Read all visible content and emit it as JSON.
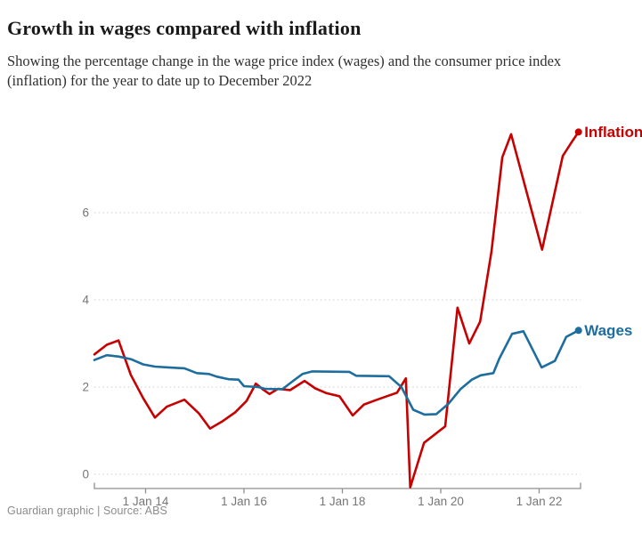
{
  "header": {
    "title": "Growth in wages compared with inflation",
    "subtitle": "Showing the percentage change in the wage price index (wages) and the consumer price index (inflation) for the year to date up to December 2022"
  },
  "footer": {
    "credit": "Guardian graphic | Source: ABS"
  },
  "chart_data": {
    "type": "line",
    "title": "Growth in wages compared with inflation",
    "xlabel": "",
    "ylabel": "",
    "legend_position": "line-end-labels",
    "grid": "dotted-horizontal",
    "colors": {
      "grid_color": "#d9d9d9",
      "axis_color": "#8f8f8f",
      "tick_label_color": "#767676",
      "title_color": "#1a1a1a",
      "subtitle_color": "#303030",
      "credit_color": "#8c8c8c"
    },
    "x_axis": {
      "unit": "decimal_year",
      "range": [
        2012.96,
        2022.8
      ],
      "ticks": [
        {
          "label": "1 Jan 14",
          "year": 2014
        },
        {
          "label": "1 Jan 16",
          "year": 2016
        },
        {
          "label": "1 Jan 18",
          "year": 2018
        },
        {
          "label": "1 Jan 20",
          "year": 2020
        },
        {
          "label": "1 Jan 22",
          "year": 2022
        }
      ]
    },
    "y_axis": {
      "unit": "percent",
      "ylim": [
        -0.5,
        8.3
      ],
      "ticks": [
        0,
        2,
        4,
        6
      ]
    },
    "series": [
      {
        "name": "Inflation",
        "color": "#c70000",
        "points": [
          [
            2012.96,
            2.75
          ],
          [
            2013.21,
            2.97
          ],
          [
            2013.45,
            3.07
          ],
          [
            2013.7,
            2.28
          ],
          [
            2013.95,
            1.75
          ],
          [
            2014.19,
            1.3
          ],
          [
            2014.43,
            1.55
          ],
          [
            2014.79,
            1.71
          ],
          [
            2015.08,
            1.4
          ],
          [
            2015.31,
            1.05
          ],
          [
            2015.57,
            1.22
          ],
          [
            2015.82,
            1.42
          ],
          [
            2016.05,
            1.68
          ],
          [
            2016.24,
            2.08
          ],
          [
            2016.38,
            1.95
          ],
          [
            2016.52,
            1.84
          ],
          [
            2016.69,
            1.96
          ],
          [
            2016.94,
            1.93
          ],
          [
            2017.23,
            2.14
          ],
          [
            2017.45,
            1.97
          ],
          [
            2017.68,
            1.86
          ],
          [
            2017.94,
            1.79
          ],
          [
            2018.21,
            1.35
          ],
          [
            2018.44,
            1.6
          ],
          [
            2018.68,
            1.7
          ],
          [
            2018.93,
            1.8
          ],
          [
            2019.11,
            1.87
          ],
          [
            2019.29,
            2.2
          ],
          [
            2019.38,
            -0.3
          ],
          [
            2019.66,
            0.72
          ],
          [
            2020.09,
            1.1
          ],
          [
            2020.34,
            3.82
          ],
          [
            2020.58,
            3.0
          ],
          [
            2020.8,
            3.5
          ],
          [
            2021.03,
            5.1
          ],
          [
            2021.25,
            7.27
          ],
          [
            2021.43,
            7.8
          ],
          [
            2022.06,
            5.15
          ],
          [
            2022.48,
            7.3
          ],
          [
            2022.68,
            7.65
          ],
          [
            2022.8,
            7.85
          ]
        ]
      },
      {
        "name": "Wages",
        "color": "#1d6e9f",
        "points": [
          [
            2012.96,
            2.62
          ],
          [
            2013.21,
            2.73
          ],
          [
            2013.45,
            2.7
          ],
          [
            2013.7,
            2.64
          ],
          [
            2013.95,
            2.52
          ],
          [
            2014.19,
            2.47
          ],
          [
            2014.46,
            2.45
          ],
          [
            2014.79,
            2.43
          ],
          [
            2015.04,
            2.32
          ],
          [
            2015.29,
            2.3
          ],
          [
            2015.44,
            2.24
          ],
          [
            2015.69,
            2.18
          ],
          [
            2015.89,
            2.17
          ],
          [
            2016.0,
            2.02
          ],
          [
            2016.29,
            2.0
          ],
          [
            2016.43,
            1.96
          ],
          [
            2016.78,
            1.95
          ],
          [
            2017.01,
            2.15
          ],
          [
            2017.19,
            2.3
          ],
          [
            2017.39,
            2.36
          ],
          [
            2018.14,
            2.35
          ],
          [
            2018.28,
            2.26
          ],
          [
            2018.95,
            2.25
          ],
          [
            2019.2,
            2.0
          ],
          [
            2019.44,
            1.48
          ],
          [
            2019.67,
            1.37
          ],
          [
            2019.91,
            1.38
          ],
          [
            2020.16,
            1.62
          ],
          [
            2020.4,
            1.95
          ],
          [
            2020.63,
            2.17
          ],
          [
            2020.81,
            2.27
          ],
          [
            2021.07,
            2.32
          ],
          [
            2021.19,
            2.65
          ],
          [
            2021.45,
            3.22
          ],
          [
            2021.68,
            3.28
          ],
          [
            2022.05,
            2.45
          ],
          [
            2022.32,
            2.6
          ],
          [
            2022.55,
            3.15
          ],
          [
            2022.8,
            3.3
          ]
        ]
      }
    ]
  }
}
